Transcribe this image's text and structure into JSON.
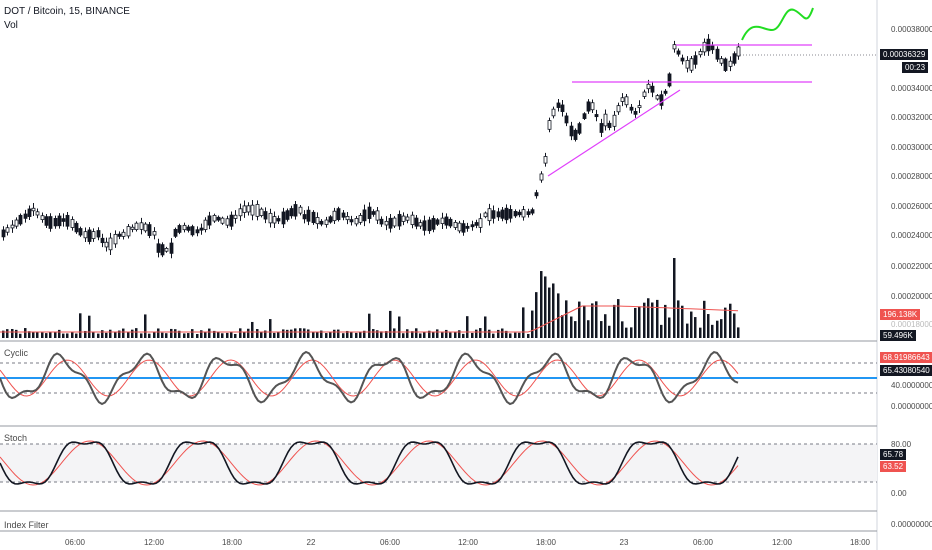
{
  "header": {
    "symbol_line": "DOT / Bitcoin, 15, BINANCE",
    "vol_label": "Vol"
  },
  "price_axis": {
    "ticks": [
      "0.00038000",
      "0.00036000",
      "0.00034000",
      "0.00032000",
      "0.00030000",
      "0.00028000",
      "0.00026000",
      "0.00024000",
      "0.00022000",
      "0.00020000"
    ],
    "current_price": "0.00036329",
    "countdown": "00:23"
  },
  "volume": {
    "ma_value": "196.138K",
    "last_value": "59.496K",
    "hidden_label": "0.00018000"
  },
  "cyclic_pane": {
    "label": "Cyclic",
    "ticks": [
      "40.00000000",
      "0.00000000"
    ],
    "value_a": "68.91986643",
    "value_b": "65.43080540"
  },
  "stoch_pane": {
    "label": "Stoch",
    "ticks": [
      "80.00",
      "0.00"
    ],
    "value_k": "65.78",
    "value_d": "63.52"
  },
  "index_filter_pane": {
    "label": "Index Filter",
    "tick": "0.00000000"
  },
  "time_axis": [
    "06:00",
    "12:00",
    "18:00",
    "22",
    "06:00",
    "12:00",
    "18:00",
    "23",
    "06:00",
    "12:00",
    "18:00"
  ],
  "colors": {
    "candle": "#131722",
    "trendline": "#e040fb",
    "forecast": "#22dd22",
    "ma_red": "#ef5350",
    "cyclic_line": "#2196f3"
  }
}
